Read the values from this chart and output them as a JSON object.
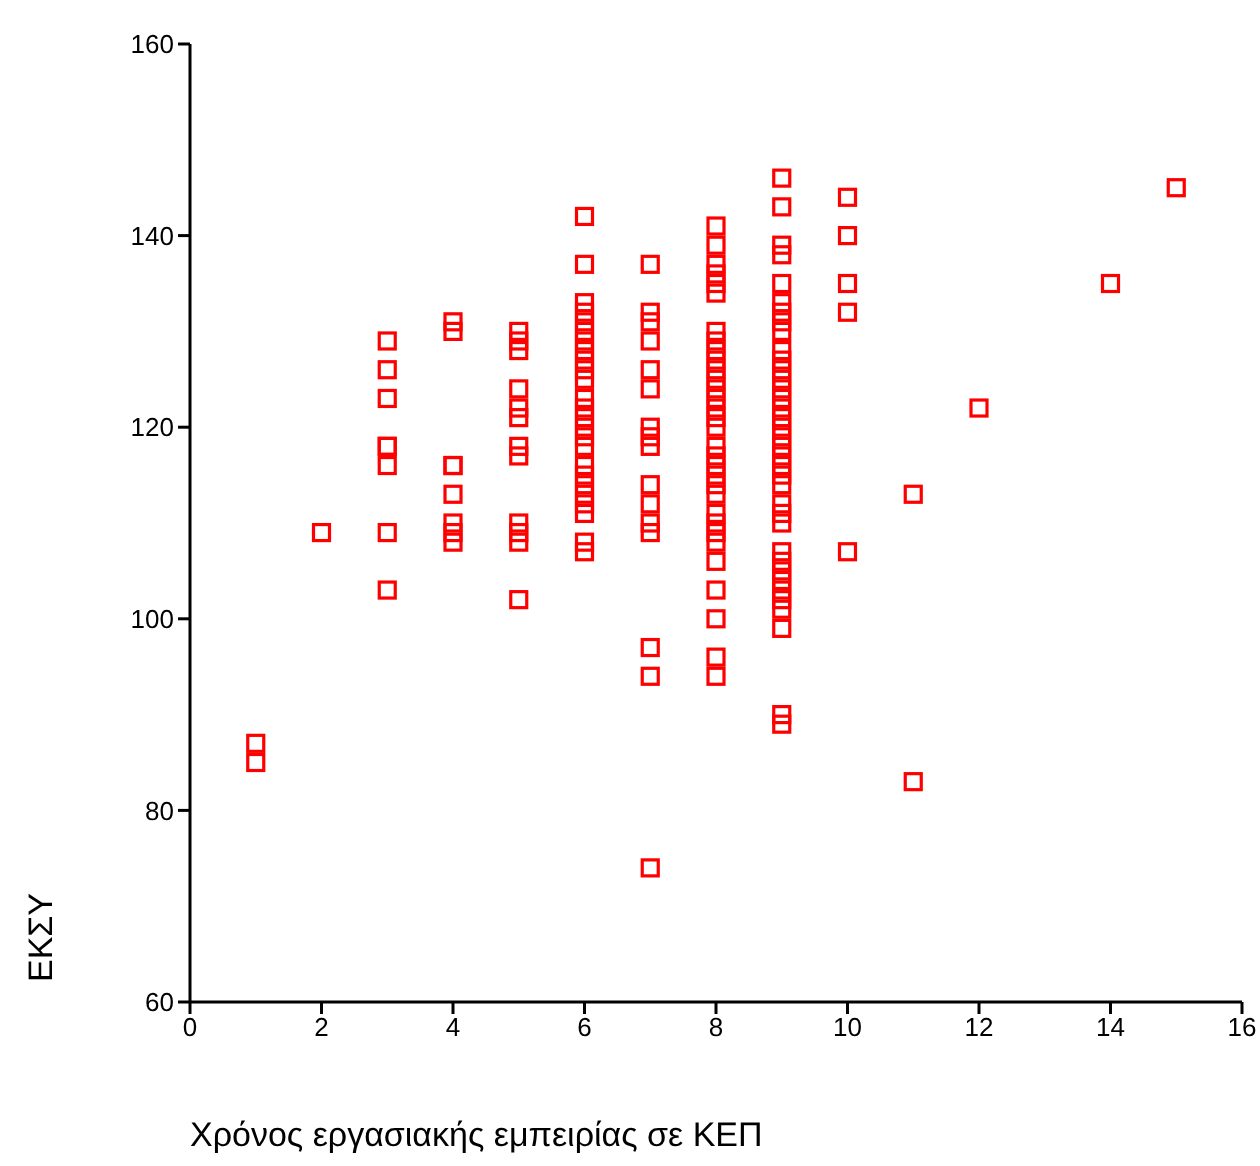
{
  "chart_data": {
    "type": "scatter",
    "xlabel": "Χρόνος εργασιακής εμπειρίας σε ΚΕΠ",
    "ylabel": "ΕΚΣΥ",
    "color": "#ff0000",
    "marker": "square",
    "grid": false,
    "legend": false,
    "x": [
      1,
      1,
      2,
      3,
      3,
      3,
      3,
      3,
      3,
      3,
      3,
      4,
      4,
      4,
      4,
      4,
      4,
      4,
      4,
      5,
      5,
      5,
      5,
      5,
      5,
      5,
      5,
      5,
      5,
      5,
      5,
      6,
      6,
      6,
      6,
      6,
      6,
      6,
      6,
      6,
      6,
      6,
      6,
      6,
      6,
      6,
      6,
      6,
      6,
      6,
      6,
      6,
      6,
      6,
      6,
      6,
      7,
      7,
      7,
      7,
      7,
      7,
      7,
      7,
      7,
      7,
      7,
      7,
      7,
      7,
      7,
      7,
      8,
      8,
      8,
      8,
      8,
      8,
      8,
      8,
      8,
      8,
      8,
      8,
      8,
      8,
      8,
      8,
      8,
      8,
      8,
      8,
      8,
      8,
      8,
      8,
      8,
      8,
      8,
      8,
      8,
      8,
      8,
      8,
      9,
      9,
      9,
      9,
      9,
      9,
      9,
      9,
      9,
      9,
      9,
      9,
      9,
      9,
      9,
      9,
      9,
      9,
      9,
      9,
      9,
      9,
      9,
      9,
      9,
      9,
      9,
      9,
      9,
      9,
      9,
      9,
      9,
      9,
      9,
      9,
      9,
      10,
      10,
      10,
      10,
      10,
      11,
      11,
      12,
      14,
      15
    ],
    "values": [
      87,
      85,
      109,
      129,
      126,
      123,
      118,
      118,
      116,
      109,
      103,
      131,
      130,
      116,
      116,
      113,
      110,
      109,
      108,
      130,
      129,
      128,
      124,
      122,
      121,
      118,
      117,
      110,
      109,
      108,
      102,
      142,
      137,
      133,
      132,
      131,
      130,
      129,
      128,
      127,
      126,
      125,
      123,
      122,
      121,
      120,
      119,
      118,
      116,
      115,
      114,
      113,
      112,
      111,
      108,
      107,
      137,
      132,
      131,
      129,
      126,
      124,
      120,
      119,
      118,
      114,
      112,
      110,
      109,
      97,
      94,
      74,
      141,
      139,
      137,
      136,
      135,
      134,
      130,
      129,
      128,
      127,
      126,
      125,
      124,
      123,
      122,
      121,
      120,
      118,
      117,
      116,
      115,
      114,
      113,
      111,
      110,
      109,
      108,
      106,
      103,
      100,
      96,
      94,
      146,
      143,
      139,
      138,
      135,
      133,
      132,
      131,
      130,
      128,
      127,
      126,
      125,
      124,
      123,
      122,
      121,
      120,
      119,
      118,
      117,
      116,
      115,
      114,
      112,
      111,
      110,
      107,
      106,
      105,
      104,
      103,
      102,
      101,
      99,
      90,
      89,
      144,
      140,
      135,
      132,
      107,
      113,
      83,
      122,
      135,
      145
    ],
    "xlim": [
      0,
      16
    ],
    "xticks": [
      0,
      2,
      4,
      6,
      8,
      10,
      12,
      14,
      16
    ],
    "ylim": [
      60,
      160
    ],
    "yticks": [
      60,
      80,
      100,
      120,
      140,
      160
    ]
  }
}
